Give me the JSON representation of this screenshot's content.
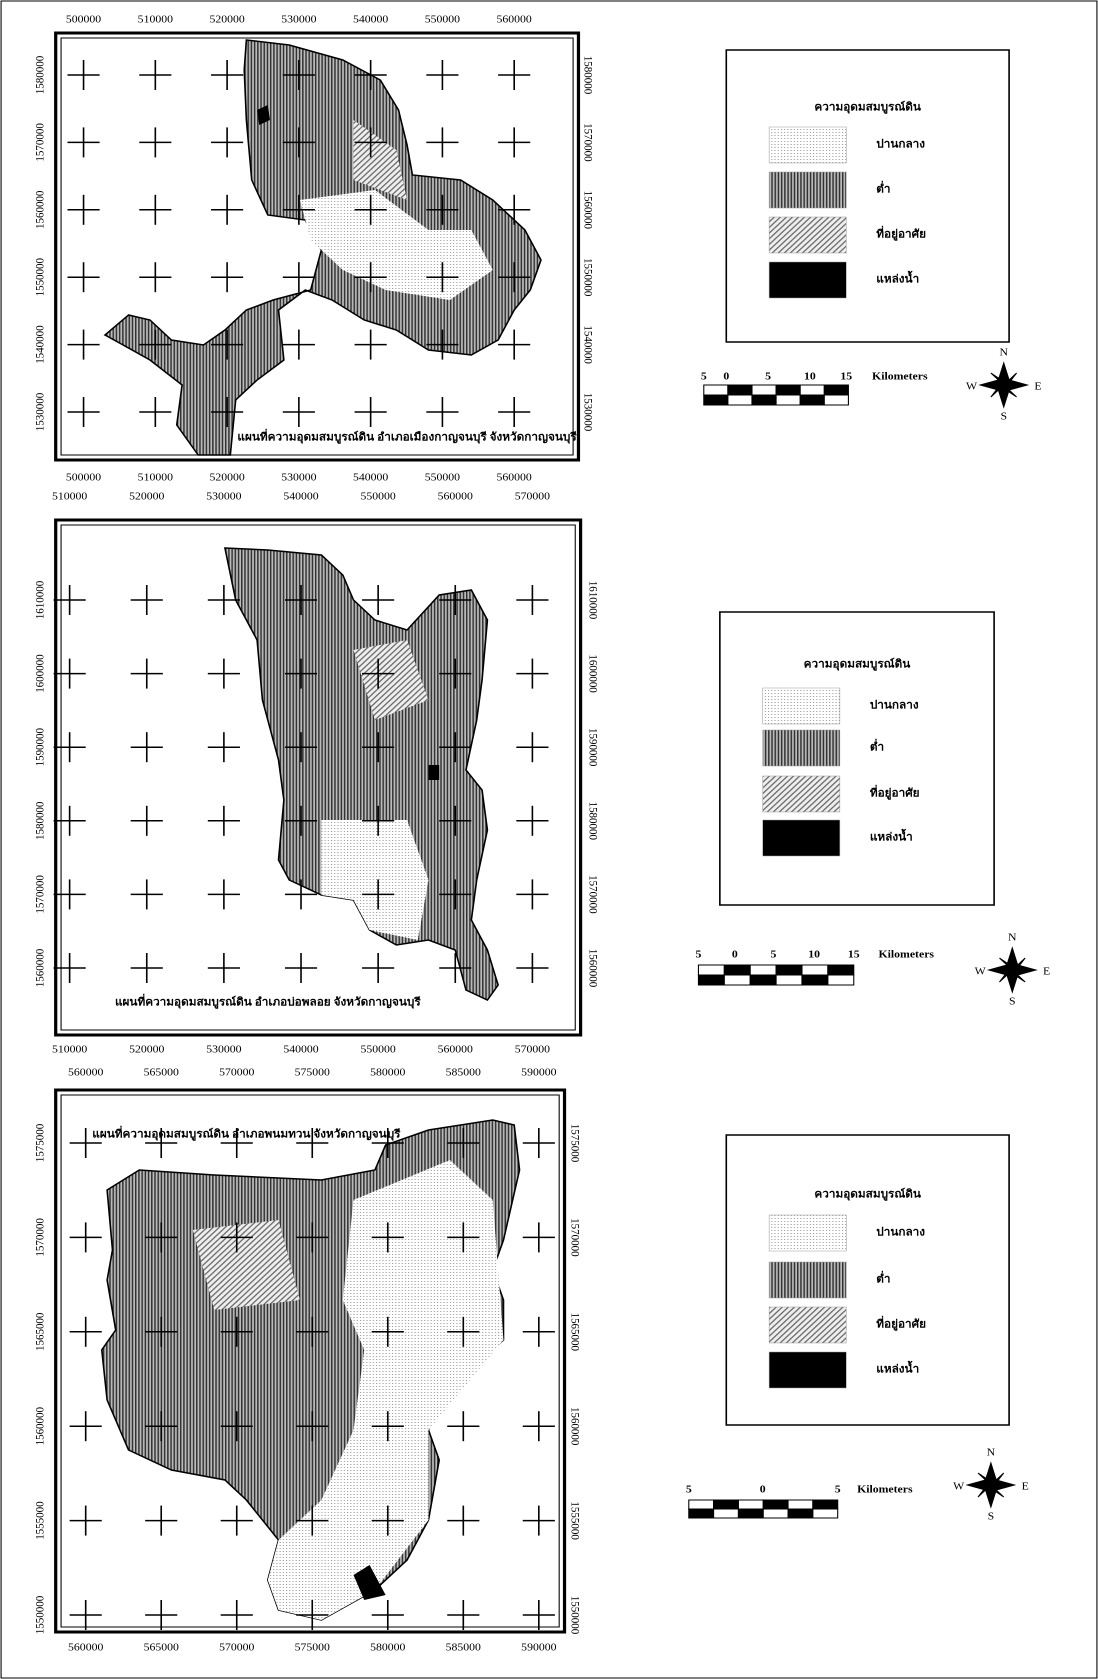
{
  "maps": [
    {
      "title": "แผนที่ความอุดมสมบูรณ์ดิน อำเภอเมืองกาญจนบุรี จังหวัดกาญจนบุรี",
      "x_ticks": [
        "500000",
        "510000",
        "520000",
        "530000",
        "540000",
        "550000",
        "560000"
      ],
      "y_ticks": [
        "1580000",
        "1570000",
        "1560000",
        "1550000",
        "1540000",
        "1530000"
      ],
      "legend": {
        "title": "ความอุดมสมบูรณ์ดิน",
        "items": [
          "ปานกลาง",
          "ต่ำ",
          "ที่อยู่อาศัย",
          "แหล่งน้ำ"
        ]
      },
      "scale": {
        "labels": [
          "5",
          "0",
          "5",
          "10",
          "15"
        ],
        "unit": "Kilometers"
      },
      "compass": {
        "n": "N",
        "e": "E",
        "s": "S",
        "w": "W"
      }
    },
    {
      "title": "แผนที่ความอุดมสมบูรณ์ดิน อำเภอบ่อพลอย จังหวัดกาญจนบุรี",
      "x_ticks": [
        "510000",
        "520000",
        "530000",
        "540000",
        "550000",
        "560000",
        "570000"
      ],
      "y_ticks": [
        "1610000",
        "1600000",
        "1590000",
        "1580000",
        "1570000",
        "1560000"
      ],
      "legend": {
        "title": "ความอุดมสมบูรณ์ดิน",
        "items": [
          "ปานกลาง",
          "ต่ำ",
          "ที่อยู่อาศัย",
          "แหล่งน้ำ"
        ]
      },
      "scale": {
        "labels": [
          "5",
          "0",
          "5",
          "10",
          "15"
        ],
        "unit": "Kilometers"
      },
      "compass": {
        "n": "N",
        "e": "E",
        "s": "S",
        "w": "W"
      }
    },
    {
      "title": "แผนที่ความอุดมสมบูรณ์ดิน อำเภอพนมทวน จังหวัดกาญจนบุรี",
      "x_ticks": [
        "560000",
        "565000",
        "570000",
        "575000",
        "580000",
        "585000",
        "590000"
      ],
      "y_ticks": [
        "1575000",
        "1570000",
        "1565000",
        "1560000",
        "1555000",
        "1550000"
      ],
      "legend": {
        "title": "ความอุดมสมบูรณ์ดิน",
        "items": [
          "ปานกลาง",
          "ต่ำ",
          "ที่อยู่อาศัย",
          "แหล่งน้ำ"
        ]
      },
      "scale": {
        "labels": [
          "5",
          "0",
          "5"
        ],
        "unit": "Kilometers"
      },
      "compass": {
        "n": "N",
        "e": "E",
        "s": "S",
        "w": "W"
      }
    }
  ]
}
